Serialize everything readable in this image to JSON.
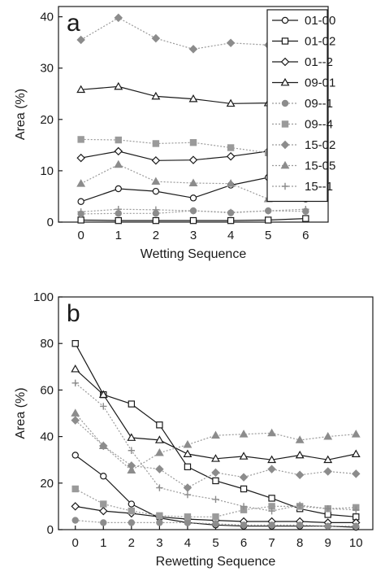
{
  "chart_data": [
    {
      "type": "line",
      "panel_label": "a",
      "xlabel": "Wetting Sequence",
      "ylabel": "Area (%)",
      "x": [
        0,
        1,
        2,
        3,
        4,
        5,
        6
      ],
      "xlim": [
        -0.6,
        6.6
      ],
      "ylim": [
        0,
        42
      ],
      "yticks": [
        0,
        10,
        20,
        30,
        40
      ],
      "grid": false,
      "legend": "top-right",
      "series": [
        {
          "name": "01-00",
          "values": [
            4,
            6.5,
            6,
            4.7,
            7.2,
            8.7,
            4.5
          ]
        },
        {
          "name": "01-02",
          "values": [
            0.4,
            0.3,
            0.3,
            0.3,
            0.3,
            0.4,
            0.7
          ]
        },
        {
          "name": "01--2",
          "values": [
            12.5,
            13.8,
            12,
            12.1,
            12.8,
            13.8,
            12.1
          ]
        },
        {
          "name": "09-01",
          "values": [
            25.8,
            26.4,
            24.5,
            24,
            23.1,
            23.2,
            24.8
          ]
        },
        {
          "name": "09--1",
          "values": [
            1.6,
            1.7,
            1.7,
            2.2,
            1.8,
            2.2,
            2.1
          ]
        },
        {
          "name": "09--4",
          "values": [
            16.1,
            16,
            15.3,
            15.5,
            14.5,
            13.5,
            13
          ]
        },
        {
          "name": "15-02",
          "values": [
            35.5,
            39.8,
            35.8,
            33.7,
            34.9,
            34.5,
            32.3
          ]
        },
        {
          "name": "15-05",
          "values": [
            7.5,
            11.2,
            7.9,
            7.6,
            7.5,
            4.5,
            9.3
          ]
        },
        {
          "name": "15--1",
          "values": [
            2,
            2.5,
            2.4,
            2.2,
            1.9,
            2.2,
            2.5
          ]
        }
      ]
    },
    {
      "type": "line",
      "panel_label": "b",
      "xlabel": "Rewetting Sequence",
      "ylabel": "Area (%)",
      "x": [
        0,
        1,
        2,
        3,
        4,
        5,
        6,
        7,
        8,
        9,
        10
      ],
      "xlim": [
        -0.6,
        10.6
      ],
      "ylim": [
        0,
        100
      ],
      "yticks": [
        0,
        20,
        40,
        60,
        80,
        100
      ],
      "grid": false,
      "legend": "none",
      "series": [
        {
          "name": "01-00",
          "values": [
            32,
            23,
            11,
            5,
            3,
            2,
            1.5,
            1.5,
            1.5,
            1.5,
            1
          ]
        },
        {
          "name": "01-02",
          "values": [
            80,
            58,
            54,
            45,
            27,
            21,
            17.5,
            13.5,
            9,
            6.5,
            5.5
          ]
        },
        {
          "name": "01--2",
          "values": [
            10,
            8,
            7,
            5.5,
            4.5,
            4,
            3.5,
            3.5,
            3.5,
            3,
            3
          ]
        },
        {
          "name": "09-01",
          "values": [
            69,
            58,
            39.5,
            38.5,
            32.5,
            30.5,
            31.5,
            30,
            32,
            30,
            32.5
          ]
        },
        {
          "name": "09--1",
          "values": [
            4,
            3,
            3,
            3,
            3,
            2.5,
            2,
            2,
            2,
            1.5,
            1.5
          ]
        },
        {
          "name": "09--4",
          "values": [
            17.5,
            11,
            8,
            6,
            5.5,
            5.5,
            8.5,
            10,
            10,
            9,
            9.5
          ]
        },
        {
          "name": "15-02",
          "values": [
            47,
            36,
            27.5,
            26,
            18,
            24.5,
            22.5,
            26,
            23.5,
            25,
            24
          ]
        },
        {
          "name": "15-05",
          "values": [
            50,
            36,
            25.5,
            33,
            36.5,
            40.5,
            41,
            41.5,
            38.5,
            40,
            41
          ]
        },
        {
          "name": "15--1",
          "values": [
            63,
            53,
            34,
            18,
            15,
            13,
            10,
            8,
            10.5,
            9,
            8.5
          ]
        }
      ]
    }
  ]
}
